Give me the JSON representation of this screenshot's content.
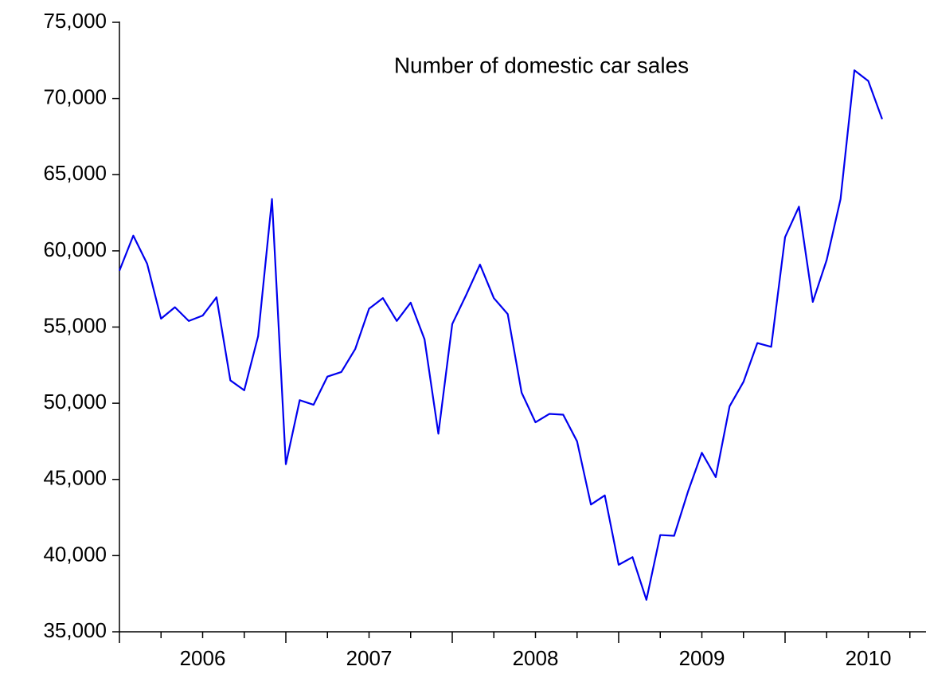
{
  "chart_data": {
    "type": "line",
    "title": "Number of domestic car sales",
    "categories": [
      null,
      null,
      null,
      null,
      null,
      null,
      "2006",
      null,
      null,
      null,
      null,
      null,
      null,
      null,
      null,
      null,
      null,
      null,
      "2007",
      null,
      null,
      null,
      null,
      null,
      null,
      null,
      null,
      null,
      null,
      null,
      "2008",
      null,
      null,
      null,
      null,
      null,
      null,
      null,
      null,
      null,
      null,
      null,
      "2009",
      null,
      null,
      null,
      null,
      null,
      null,
      null,
      null,
      null,
      null,
      null,
      "2010",
      null
    ],
    "values": [
      58700,
      61000,
      59150,
      55550,
      56300,
      55400,
      55750,
      56950,
      51500,
      50850,
      54400,
      63400,
      46000,
      50200,
      49900,
      51750,
      52050,
      53550,
      56200,
      56900,
      55400,
      56600,
      54200,
      48000,
      55200,
      57100,
      59100,
      56900,
      55850,
      50700,
      48750,
      49300,
      49250,
      47500,
      43350,
      43950,
      39400,
      39900,
      37100,
      41350,
      41300,
      44200,
      46750,
      45150,
      49800,
      51400,
      53950,
      53700,
      60900,
      62900,
      56650,
      59400,
      63400,
      71850,
      71150,
      68650
    ],
    "color": "#0000ee",
    "ylim": [
      35000,
      75000
    ],
    "yticks": [
      {
        "value": 35000,
        "label": "35,000"
      },
      {
        "value": 40000,
        "label": "40,000"
      },
      {
        "value": 45000,
        "label": "45,000"
      },
      {
        "value": 50000,
        "label": "50,000"
      },
      {
        "value": 55000,
        "label": "55,000"
      },
      {
        "value": 60000,
        "label": "60,000"
      },
      {
        "value": 65000,
        "label": "65,000"
      },
      {
        "value": 70000,
        "label": "70,000"
      },
      {
        "value": 75000,
        "label": "75,000"
      }
    ],
    "grid": false
  }
}
